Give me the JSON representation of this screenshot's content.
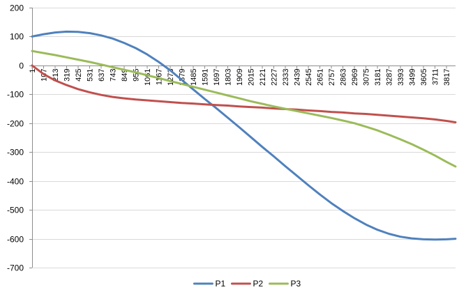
{
  "chart_data": {
    "type": "line",
    "title": "",
    "xlabel": "",
    "ylabel": "",
    "ylim": [
      -700,
      200
    ],
    "y_ticks": [
      200,
      100,
      0,
      -100,
      -200,
      -300,
      -400,
      -500,
      -600,
      -700
    ],
    "x_tick_labels": [
      "1",
      "107",
      "213",
      "319",
      "425",
      "531",
      "637",
      "743",
      "849",
      "955",
      "1061",
      "1167",
      "1273",
      "1379",
      "1485",
      "1591",
      "1697",
      "1803",
      "1909",
      "2015",
      "2121",
      "2227",
      "2333",
      "2439",
      "2545",
      "2651",
      "2757",
      "2863",
      "2969",
      "3075",
      "3181",
      "3287",
      "3393",
      "3499",
      "3605",
      "3711",
      "3817"
    ],
    "x_range": [
      1,
      3900
    ],
    "grid": "horizontal",
    "legend": "bottom",
    "series": [
      {
        "name": "P1",
        "color": "#4F81BD",
        "x": [
          1,
          107,
          213,
          319,
          425,
          531,
          637,
          743,
          849,
          955,
          1061,
          1167,
          1273,
          1379,
          1485,
          1591,
          1697,
          1803,
          1909,
          2015,
          2121,
          2227,
          2333,
          2439,
          2545,
          2651,
          2757,
          2863,
          2969,
          3075,
          3181,
          3287,
          3393,
          3499,
          3605,
          3711,
          3817,
          3900
        ],
        "values": [
          100,
          108,
          114,
          117,
          116,
          112,
          104,
          93,
          78,
          60,
          38,
          12,
          -17,
          -50,
          -83,
          -116,
          -148,
          -181,
          -214,
          -248,
          -282,
          -315,
          -349,
          -382,
          -415,
          -447,
          -477,
          -504,
          -529,
          -551,
          -569,
          -583,
          -593,
          -599,
          -602,
          -603,
          -602,
          -600
        ]
      },
      {
        "name": "P2",
        "color": "#C0504D",
        "x": [
          1,
          107,
          213,
          319,
          425,
          531,
          637,
          743,
          849,
          955,
          1061,
          1167,
          1273,
          1379,
          1485,
          1591,
          1697,
          1803,
          1909,
          2015,
          2121,
          2227,
          2333,
          2439,
          2545,
          2651,
          2757,
          2863,
          2969,
          3075,
          3181,
          3287,
          3393,
          3499,
          3605,
          3711,
          3817,
          3900
        ],
        "values": [
          0,
          -30,
          -52,
          -68,
          -82,
          -93,
          -102,
          -109,
          -114,
          -118,
          -121,
          -124,
          -127,
          -130,
          -132,
          -135,
          -137,
          -139,
          -142,
          -144,
          -146,
          -149,
          -151,
          -153,
          -156,
          -158,
          -161,
          -163,
          -166,
          -168,
          -171,
          -174,
          -177,
          -180,
          -183,
          -187,
          -192,
          -197
        ]
      },
      {
        "name": "P3",
        "color": "#9BBB59",
        "x": [
          1,
          107,
          213,
          319,
          425,
          531,
          637,
          743,
          849,
          955,
          1061,
          1167,
          1273,
          1379,
          1485,
          1591,
          1697,
          1803,
          1909,
          2015,
          2121,
          2227,
          2333,
          2439,
          2545,
          2651,
          2757,
          2863,
          2969,
          3075,
          3181,
          3287,
          3393,
          3499,
          3605,
          3711,
          3817,
          3900
        ],
        "values": [
          50,
          43,
          36,
          28,
          20,
          12,
          3,
          -6,
          -15,
          -24,
          -34,
          -44,
          -54,
          -64,
          -74,
          -84,
          -94,
          -104,
          -114,
          -124,
          -133,
          -142,
          -150,
          -158,
          -166,
          -174,
          -182,
          -191,
          -200,
          -212,
          -225,
          -240,
          -256,
          -273,
          -292,
          -312,
          -334,
          -350
        ]
      }
    ]
  }
}
